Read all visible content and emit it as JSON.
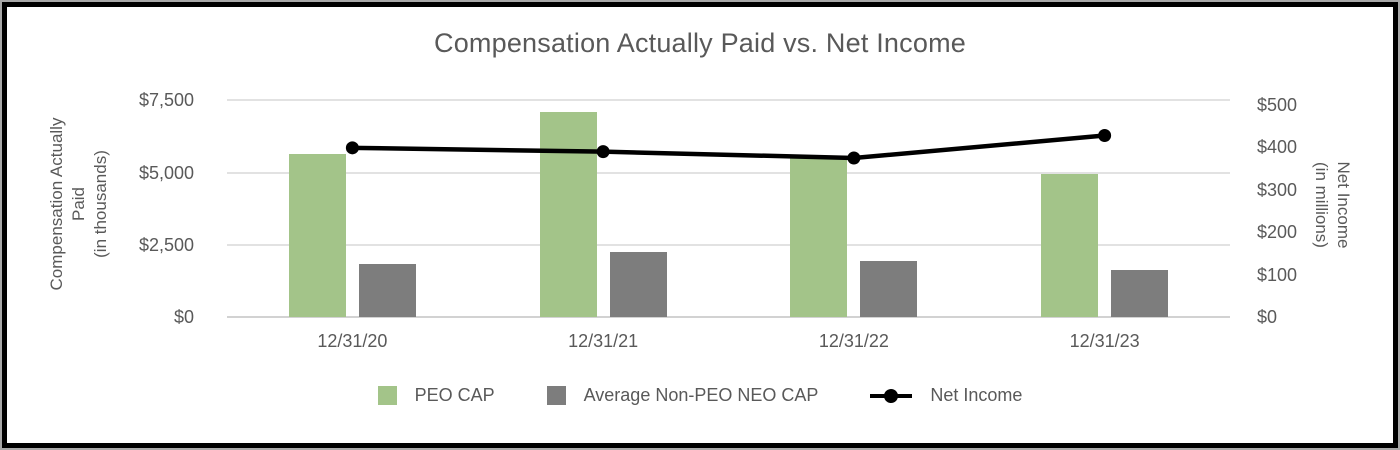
{
  "title": "Compensation Actually Paid vs. Net Income",
  "chart_data": {
    "type": "combo-bar-line",
    "title": "Compensation Actually Paid vs. Net Income",
    "categories": [
      "12/31/20",
      "12/31/21",
      "12/31/22",
      "12/31/23"
    ],
    "series": [
      {
        "name": "PEO CAP",
        "type": "bar",
        "axis": "left",
        "color": "#a3c489",
        "values": [
          5650,
          7100,
          5500,
          4950
        ]
      },
      {
        "name": "Average Non-PEO NEO CAP",
        "type": "bar",
        "axis": "left",
        "color": "#7d7d7d",
        "values": [
          1850,
          2250,
          1950,
          1620
        ]
      },
      {
        "name": "Net Income",
        "type": "line",
        "axis": "right",
        "color": "#000000",
        "values": [
          399,
          390,
          375,
          428
        ]
      }
    ],
    "left_axis": {
      "title_lines": [
        "Compensation Actually",
        "Paid",
        "(in thousands)"
      ],
      "ticks": [
        0,
        2500,
        5000,
        7500
      ],
      "tick_labels": [
        "$0",
        "$2,500",
        "$5,000",
        "$7,500"
      ],
      "range": [
        0,
        7500
      ]
    },
    "right_axis": {
      "title_lines": [
        "Net Income",
        "(in millions)"
      ],
      "ticks": [
        0,
        100,
        200,
        300,
        400,
        500
      ],
      "tick_labels": [
        "$0",
        "$100",
        "$200",
        "$300",
        "$400",
        "$500"
      ],
      "range": [
        0,
        500
      ]
    },
    "legend_position": "bottom",
    "grid": "horizontal",
    "colors": {
      "text": "#595959",
      "gridline": "#e2e2e2",
      "peo_bar": "#a3c489",
      "non_peo_bar": "#7d7d7d",
      "net_income_line": "#000000"
    }
  }
}
